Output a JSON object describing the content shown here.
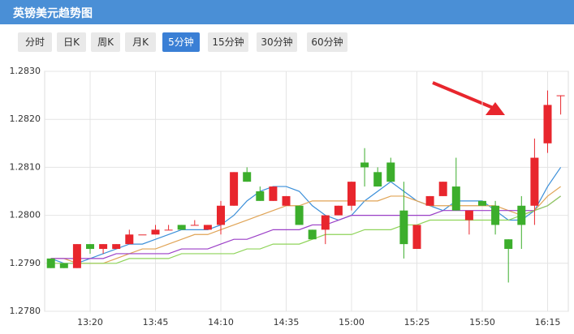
{
  "header": {
    "title": "英镑美元趋势图"
  },
  "tabs": {
    "items": [
      "分时",
      "日K",
      "周K",
      "月K",
      "5分钟",
      "15分钟",
      "30分钟",
      "60分钟"
    ],
    "active": 4
  },
  "chart_data": {
    "type": "candlestick",
    "categories": [
      null,
      null,
      null,
      "13:20",
      null,
      null,
      null,
      null,
      "13:45",
      null,
      null,
      null,
      null,
      "14:10",
      null,
      null,
      null,
      null,
      "14:35",
      null,
      null,
      null,
      null,
      "15:00",
      null,
      null,
      null,
      null,
      "15:25",
      null,
      null,
      null,
      null,
      "15:50",
      null,
      null,
      null,
      null,
      "16:15",
      null
    ],
    "open": [
      1.2791,
      1.279,
      1.2789,
      1.2794,
      1.2793,
      1.2793,
      1.2794,
      1.2796,
      1.2796,
      1.2797,
      1.2798,
      1.2798,
      1.2797,
      1.2798,
      1.2802,
      1.2809,
      1.2805,
      1.2803,
      1.2802,
      1.2802,
      1.2797,
      1.2797,
      1.28,
      1.2802,
      1.2811,
      1.2809,
      1.2811,
      1.2801,
      1.2793,
      1.2802,
      1.2804,
      1.2806,
      1.2799,
      1.2803,
      1.2802,
      1.2795,
      1.2802,
      1.2802,
      1.2815,
      1.2825
    ],
    "high": [
      1.2791,
      1.279,
      1.2794,
      1.2794,
      1.2794,
      1.2794,
      1.2797,
      1.2796,
      1.2798,
      1.2798,
      1.2798,
      1.2799,
      1.2798,
      1.2803,
      1.2809,
      1.281,
      1.2806,
      1.2806,
      1.2804,
      1.2802,
      1.2797,
      1.28,
      1.2802,
      1.2807,
      1.2814,
      1.281,
      1.2812,
      1.2807,
      1.2798,
      1.2804,
      1.2807,
      1.2812,
      1.2801,
      1.2803,
      1.2803,
      1.2795,
      1.2804,
      1.2816,
      1.2826,
      1.2825
    ],
    "low": [
      1.2789,
      1.2789,
      1.2789,
      1.2792,
      1.2792,
      1.2793,
      1.2794,
      1.2796,
      1.2796,
      1.2797,
      1.2797,
      1.2798,
      1.2797,
      1.2796,
      1.2802,
      1.2807,
      1.2803,
      1.2803,
      1.2802,
      1.2798,
      1.2795,
      1.2794,
      1.28,
      1.2801,
      1.2806,
      1.2806,
      1.2807,
      1.2791,
      1.2793,
      1.2802,
      1.2804,
      1.2801,
      1.2796,
      1.2802,
      1.2796,
      1.2786,
      1.2793,
      1.2798,
      1.2813,
      1.2821
    ],
    "close": [
      1.2789,
      1.2789,
      1.2794,
      1.2793,
      1.2794,
      1.2794,
      1.2796,
      1.2796,
      1.2797,
      1.2797,
      1.2797,
      1.2798,
      1.2798,
      1.2802,
      1.2809,
      1.2807,
      1.2803,
      1.2806,
      1.2804,
      1.2798,
      1.2795,
      1.28,
      1.2802,
      1.2807,
      1.281,
      1.2806,
      1.2807,
      1.2794,
      1.2798,
      1.2804,
      1.2807,
      1.2801,
      1.2801,
      1.2802,
      1.2798,
      1.2793,
      1.2798,
      1.2812,
      1.2823,
      1.2825
    ],
    "up_color": "#e8262d",
    "down_color": "#3cae2c",
    "series": [
      {
        "color": "#3b8fd9",
        "values": [
          1.2791,
          1.279,
          1.279,
          1.2791,
          1.2792,
          1.2793,
          1.2794,
          1.2794,
          1.2795,
          1.2796,
          1.2797,
          1.2797,
          1.2797,
          1.2798,
          1.28,
          1.2803,
          1.2805,
          1.2806,
          1.2806,
          1.2805,
          1.2802,
          1.28,
          1.2799,
          1.28,
          1.2803,
          1.2805,
          1.2807,
          1.2805,
          1.2803,
          1.2802,
          1.2801,
          1.2803,
          1.2803,
          1.2803,
          1.2801,
          1.2799,
          1.2799,
          1.2801,
          1.2806,
          1.281
        ]
      },
      {
        "color": "#e0a456",
        "values": [
          1.2791,
          1.2791,
          1.279,
          1.279,
          1.279,
          1.2791,
          1.2792,
          1.2793,
          1.2793,
          1.2794,
          1.2795,
          1.2796,
          1.2796,
          1.2797,
          1.2798,
          1.2799,
          1.28,
          1.2801,
          1.2802,
          1.2802,
          1.2803,
          1.2803,
          1.2803,
          1.2803,
          1.2803,
          1.2803,
          1.2804,
          1.2804,
          1.2803,
          1.2802,
          1.2802,
          1.2802,
          1.2802,
          1.2802,
          1.2802,
          1.2801,
          1.28,
          1.2801,
          1.2804,
          1.2806
        ]
      },
      {
        "color": "#9b3fc7",
        "values": [
          1.2791,
          1.2791,
          1.2791,
          1.2791,
          1.2791,
          1.2792,
          1.2792,
          1.2792,
          1.2792,
          1.2792,
          1.2793,
          1.2793,
          1.2793,
          1.2794,
          1.2795,
          1.2795,
          1.2796,
          1.2797,
          1.2797,
          1.2797,
          1.2798,
          1.2798,
          1.2799,
          1.28,
          1.28,
          1.28,
          1.28,
          1.28,
          1.28,
          1.28,
          1.2801,
          1.2801,
          1.2801,
          1.2801,
          1.2801,
          1.2801,
          1.2801,
          1.2801,
          1.2802,
          1.2804
        ]
      },
      {
        "color": "#8fd45a",
        "values": [
          1.279,
          1.279,
          1.279,
          1.279,
          1.279,
          1.279,
          1.2791,
          1.2791,
          1.2791,
          1.2791,
          1.2792,
          1.2792,
          1.2792,
          1.2792,
          1.2792,
          1.2793,
          1.2793,
          1.2794,
          1.2794,
          1.2794,
          1.2795,
          1.2796,
          1.2796,
          1.2796,
          1.2797,
          1.2797,
          1.2797,
          1.2798,
          1.2798,
          1.2799,
          1.2799,
          1.2799,
          1.2799,
          1.2799,
          1.2799,
          1.2799,
          1.28,
          1.2801,
          1.2802,
          1.2804
        ]
      }
    ],
    "ylim": [
      1.278,
      1.283
    ],
    "yticks": [
      {
        "value": 1.278,
        "label": "1.2780"
      },
      {
        "value": 1.279,
        "label": "1.2790"
      },
      {
        "value": 1.28,
        "label": "1.2800"
      },
      {
        "value": 1.281,
        "label": "1.2810"
      },
      {
        "value": 1.282,
        "label": "1.2820"
      },
      {
        "value": 1.283,
        "label": "1.2830"
      }
    ],
    "grid": true
  }
}
